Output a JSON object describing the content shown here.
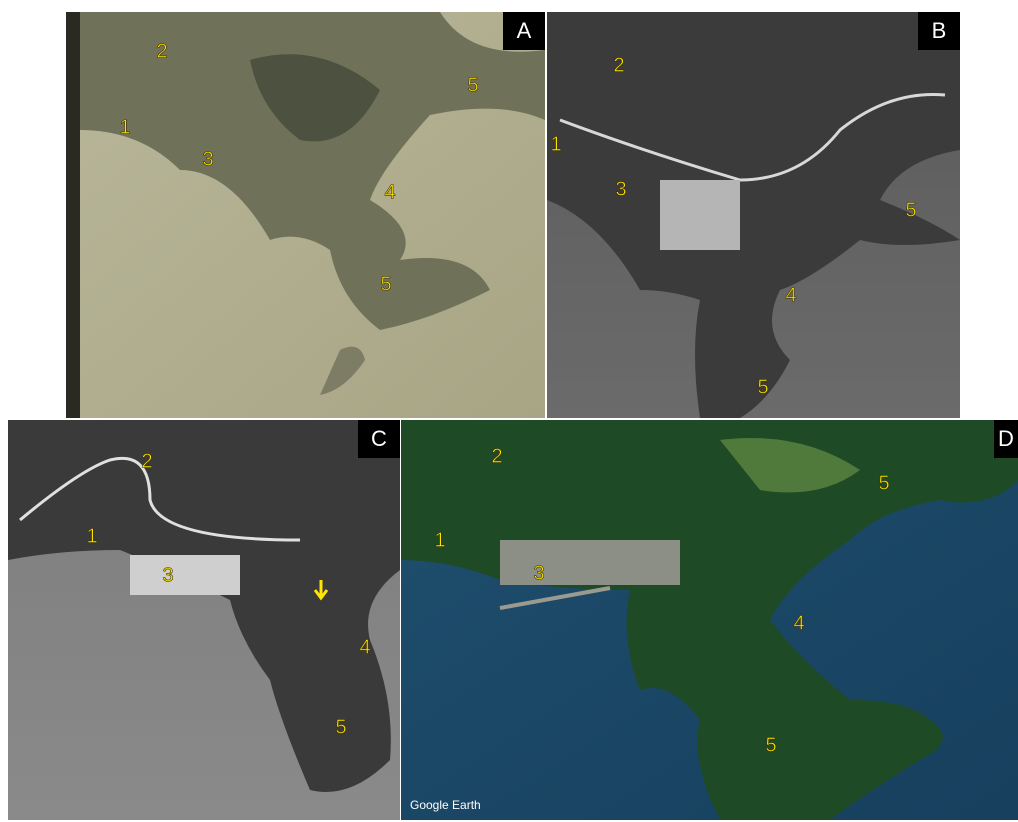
{
  "panels": [
    {
      "letter": "A",
      "markers": [
        "2",
        "1",
        "3",
        "5",
        "4",
        "5"
      ]
    },
    {
      "letter": "B",
      "markers": [
        "2",
        "1",
        "3",
        "5",
        "4",
        "5"
      ]
    },
    {
      "letter": "C",
      "markers": [
        "2",
        "1",
        "3",
        "4",
        "5"
      ]
    },
    {
      "letter": "D",
      "markers": [
        "2",
        "1",
        "3",
        "5",
        "4",
        "5"
      ],
      "credit": "Google Earth"
    }
  ]
}
